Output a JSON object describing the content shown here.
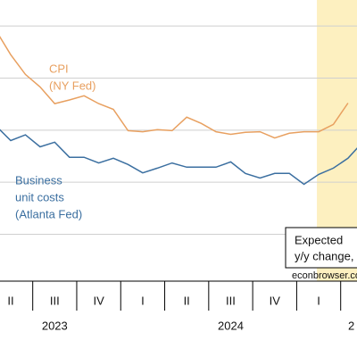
{
  "chart_data": {
    "type": "line",
    "categories": [
      null,
      "II",
      null,
      null,
      "III",
      null,
      null,
      "IV",
      null,
      null,
      "I",
      null,
      null,
      "II",
      null,
      null,
      "III",
      null,
      null,
      "IV",
      null,
      null,
      "I",
      null,
      null,
      null
    ],
    "years": [
      "2023",
      "2024",
      "2"
    ],
    "series": [
      {
        "name": "CPI (NY Fed)",
        "label_lines": [
          "CPI",
          "(NY Fed)"
        ],
        "color": "#e8a060",
        "values": [
          4.91,
          4.45,
          4.07,
          3.83,
          3.51,
          3.58,
          3.66,
          3.51,
          3.4,
          2.99,
          2.97,
          3.01,
          2.99,
          3.25,
          3.13,
          2.97,
          2.92,
          2.96,
          2.97,
          2.85,
          2.94,
          2.97,
          2.97,
          3.11,
          3.52,
          null
        ]
      },
      {
        "name": "Business unit costs (Atlanta Fed)",
        "label_lines": [
          "Business",
          "unit costs",
          "(Atlanta Fed)"
        ],
        "color": "#3b6fa0",
        "values": [
          3.08,
          2.8,
          2.91,
          2.68,
          2.77,
          2.48,
          2.48,
          2.37,
          2.46,
          2.34,
          2.18,
          2.27,
          2.37,
          2.29,
          2.29,
          2.29,
          2.39,
          2.17,
          2.08,
          2.17,
          2.17,
          1.96,
          2.15,
          2.27,
          2.46,
          2.77
        ]
      }
    ],
    "annotation": [
      "Expected",
      "y/y change,"
    ],
    "source": "econbrowser.com",
    "ylim": [
      0.1,
      5.5
    ],
    "yticks": [
      1,
      2,
      3,
      4,
      5
    ],
    "grid": true,
    "shade_color": "#fdf0c0"
  }
}
